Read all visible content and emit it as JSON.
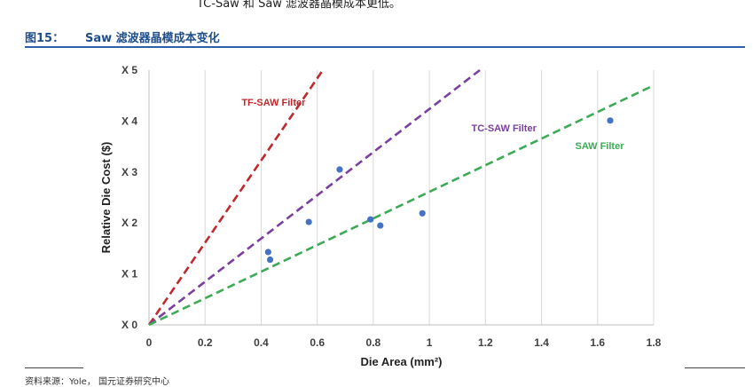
{
  "intro_text": "TC-Saw 和 Saw 滤波器晶模成本更低。",
  "figure": {
    "number": "图15：",
    "title": "Saw 滤波器晶模成本变化"
  },
  "source": "资料来源：Yole， 国元证券研究中心",
  "chart_data": {
    "type": "scatter",
    "title": "",
    "xlabel": "Die Area (mm²)",
    "ylabel": "Relative Die Cost ($)",
    "xlim": [
      0,
      1.8
    ],
    "ylim": [
      0,
      5
    ],
    "x_ticks": [
      "0",
      "0.2",
      "0.4",
      "0.6",
      "0.8",
      "1",
      "1.2",
      "1.4",
      "1.6",
      "1.8"
    ],
    "x_tick_values": [
      0,
      0.2,
      0.4,
      0.6,
      0.8,
      1.0,
      1.2,
      1.4,
      1.6,
      1.8
    ],
    "y_ticks": [
      "X 0",
      "X 1",
      "X 2",
      "X 3",
      "X 4",
      "X 5"
    ],
    "y_tick_values": [
      0,
      1,
      2,
      3,
      4,
      5
    ],
    "grid": "vertical",
    "points": [
      {
        "x": 0.425,
        "y": 1.43
      },
      {
        "x": 0.432,
        "y": 1.28
      },
      {
        "x": 0.57,
        "y": 2.02
      },
      {
        "x": 0.68,
        "y": 3.05
      },
      {
        "x": 0.79,
        "y": 2.07
      },
      {
        "x": 0.825,
        "y": 1.95
      },
      {
        "x": 0.975,
        "y": 2.19
      },
      {
        "x": 1.645,
        "y": 4.01
      }
    ],
    "point_color": "#4472c4",
    "trend_lines": [
      {
        "name": "TF-SAW Filter",
        "color": "#c0282d",
        "x": [
          0,
          0.62
        ],
        "y": [
          0,
          5
        ],
        "label_x": 0.33,
        "label_y": 4.3
      },
      {
        "name": "TC-SAW Filter",
        "color": "#7b3fa0",
        "x": [
          0,
          1.18
        ],
        "y": [
          0,
          5
        ],
        "label_x": 1.15,
        "label_y": 3.8
      },
      {
        "name": "SAW Filter",
        "color": "#3dab56",
        "x": [
          0,
          1.8
        ],
        "y": [
          0,
          4.7
        ],
        "label_x": 1.52,
        "label_y": 3.45
      }
    ]
  }
}
